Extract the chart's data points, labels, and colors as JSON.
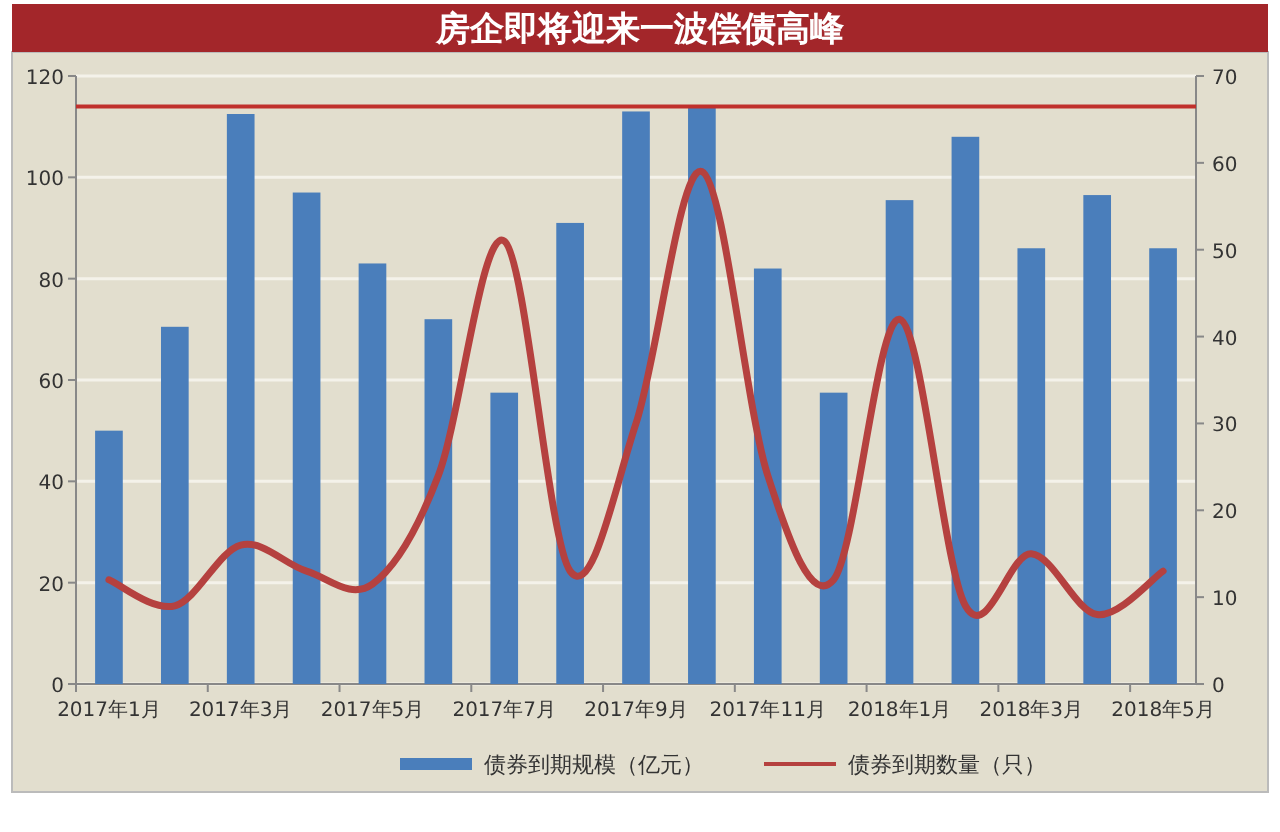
{
  "chart_data": {
    "type": "bar",
    "title": "房企即将迎来一波偿债高峰",
    "categories": [
      "2017年1月",
      null,
      "2017年3月",
      null,
      "2017年5月",
      null,
      "2017年7月",
      null,
      "2017年9月",
      null,
      "2017年11月",
      null,
      "2018年1月",
      null,
      "2018年3月",
      null,
      "2018年5月"
    ],
    "series": [
      {
        "name": "债券到期规模（亿元）",
        "color": "#4a7ebb",
        "values": [
          50,
          70.5,
          112.5,
          97,
          83,
          72,
          57.5,
          91,
          113,
          114,
          82,
          57.5,
          95.5,
          108,
          86,
          96.5,
          86
        ]
      },
      {
        "name": "债券到期数量（只）",
        "type": "line",
        "axis": "y2",
        "color": "#b5413f",
        "values": [
          12,
          9,
          16,
          13,
          11.5,
          24,
          51,
          13,
          30,
          59,
          24,
          12,
          42,
          9,
          15,
          8,
          13
        ]
      }
    ],
    "ylim": [
      0,
      120
    ],
    "yticks": [
      0,
      20,
      40,
      60,
      80,
      100,
      120
    ],
    "y2lim": [
      0,
      70
    ],
    "y2ticks": [
      0,
      10,
      20,
      30,
      40,
      50,
      60,
      70
    ],
    "ref_lines": [
      {
        "axis": "y",
        "value": 114,
        "color": "#c0302c"
      }
    ],
    "grid": "y",
    "legend": "bottom",
    "marker": "none"
  }
}
